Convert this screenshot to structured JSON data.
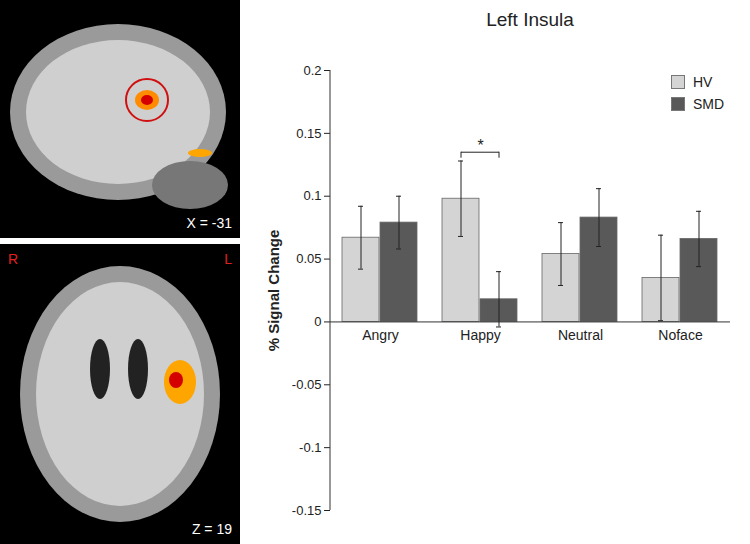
{
  "chart_data": {
    "type": "bar",
    "title": "Left Insula",
    "categories": [
      "Angry",
      "Happy",
      "Neutral",
      "Noface"
    ],
    "series": [
      {
        "name": "HV",
        "color": "#d4d4d4",
        "values": [
          0.067,
          0.098,
          0.054,
          0.035
        ],
        "errors": [
          0.025,
          0.03,
          0.025,
          0.034
        ]
      },
      {
        "name": "SMD",
        "color": "#595959",
        "values": [
          0.079,
          0.018,
          0.083,
          0.066
        ],
        "errors": [
          0.021,
          0.022,
          0.023,
          0.022
        ]
      }
    ],
    "y_label": "% Signal Change",
    "ylim": [
      -0.15,
      0.2
    ],
    "yticks": [
      -0.15,
      -0.1,
      -0.05,
      0,
      0.05,
      0.1,
      0.15,
      0.2
    ],
    "legend": "top-right",
    "annotations": [
      {
        "category": "Happy",
        "text": "*",
        "y": 0.135
      }
    ],
    "images": [
      {
        "label": "X = -31"
      },
      {
        "label": "Z = 19",
        "left": "R",
        "right": "L"
      }
    ]
  }
}
